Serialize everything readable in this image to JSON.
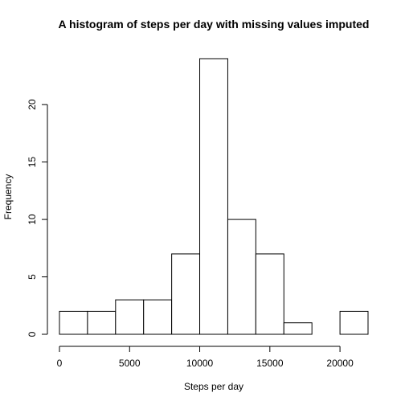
{
  "chart_data": {
    "type": "bar",
    "title": "A histogram of steps per day with missing values imputed",
    "xlabel": "Steps per day",
    "ylabel": "Frequency",
    "bin_edges": [
      0,
      2000,
      4000,
      6000,
      8000,
      10000,
      12000,
      14000,
      16000,
      18000,
      20000,
      22000
    ],
    "values": [
      2,
      2,
      3,
      3,
      7,
      24,
      10,
      7,
      1,
      0,
      2
    ],
    "xlim": [
      0,
      22000
    ],
    "ylim": [
      0,
      24
    ],
    "x_ticks": [
      0,
      5000,
      10000,
      15000,
      20000
    ],
    "x_tick_labels": [
      "0",
      "5000",
      "10000",
      "15000",
      "20000"
    ],
    "y_ticks": [
      0,
      5,
      10,
      15,
      20
    ],
    "y_tick_labels": [
      "0",
      "5",
      "10",
      "15",
      "20"
    ],
    "grid": false,
    "bar_fill": "#ffffff",
    "bar_stroke": "#000000"
  }
}
